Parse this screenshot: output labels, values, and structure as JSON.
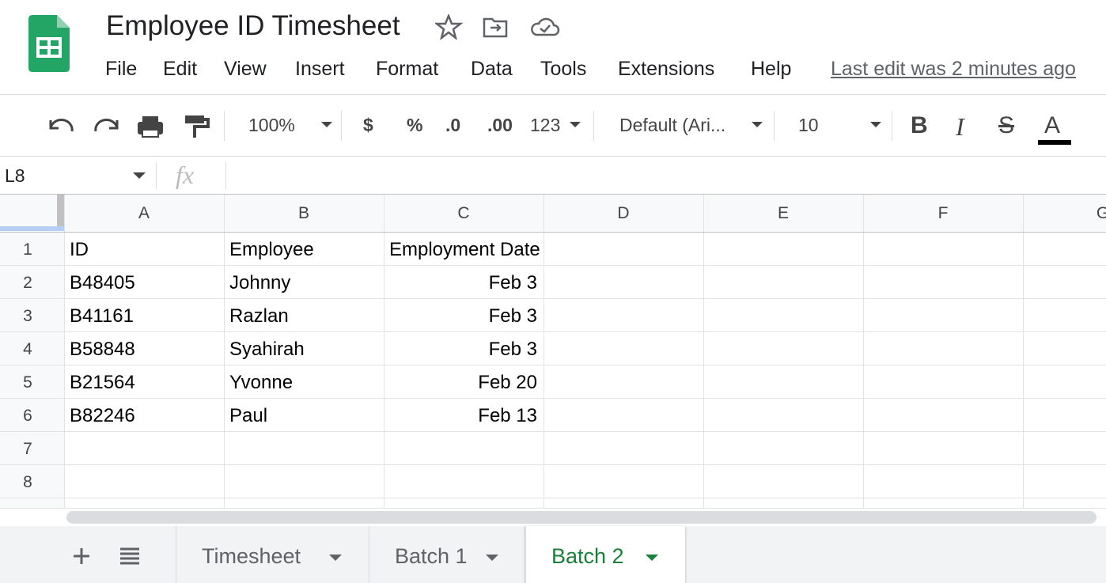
{
  "header": {
    "title": "Employee ID Timesheet",
    "last_edit": "Last edit was 2 minutes ago"
  },
  "menu": [
    "File",
    "Edit",
    "View",
    "Insert",
    "Format",
    "Data",
    "Tools",
    "Extensions",
    "Help"
  ],
  "toolbar": {
    "zoom": "100%",
    "currency": "$",
    "percent": "%",
    "decrease_decimal": ".0",
    "increase_decimal": ".00",
    "more_formats": "123",
    "font": "Default (Ari...",
    "font_size": "10",
    "bold": "B",
    "italic": "I",
    "strikethrough": "S",
    "text_color": "A"
  },
  "formula_bar": {
    "name_box": "L8",
    "fx": "fx"
  },
  "columns": [
    "A",
    "B",
    "C",
    "D",
    "E",
    "F",
    "G"
  ],
  "row_numbers": [
    "1",
    "2",
    "3",
    "4",
    "5",
    "6",
    "7",
    "8"
  ],
  "table": {
    "rows": [
      [
        "ID",
        "Employee",
        "Employment Date"
      ],
      [
        "B48405",
        "Johnny",
        "Feb 3"
      ],
      [
        "B41161",
        "Razlan",
        "Feb 3"
      ],
      [
        "B58848",
        "Syahirah",
        "Feb 3"
      ],
      [
        "B21564",
        "Yvonne",
        "Feb 20"
      ],
      [
        "B82246",
        "Paul",
        "Feb 13"
      ]
    ]
  },
  "tabs": [
    "Timesheet",
    "Batch 1",
    "Batch 2"
  ]
}
